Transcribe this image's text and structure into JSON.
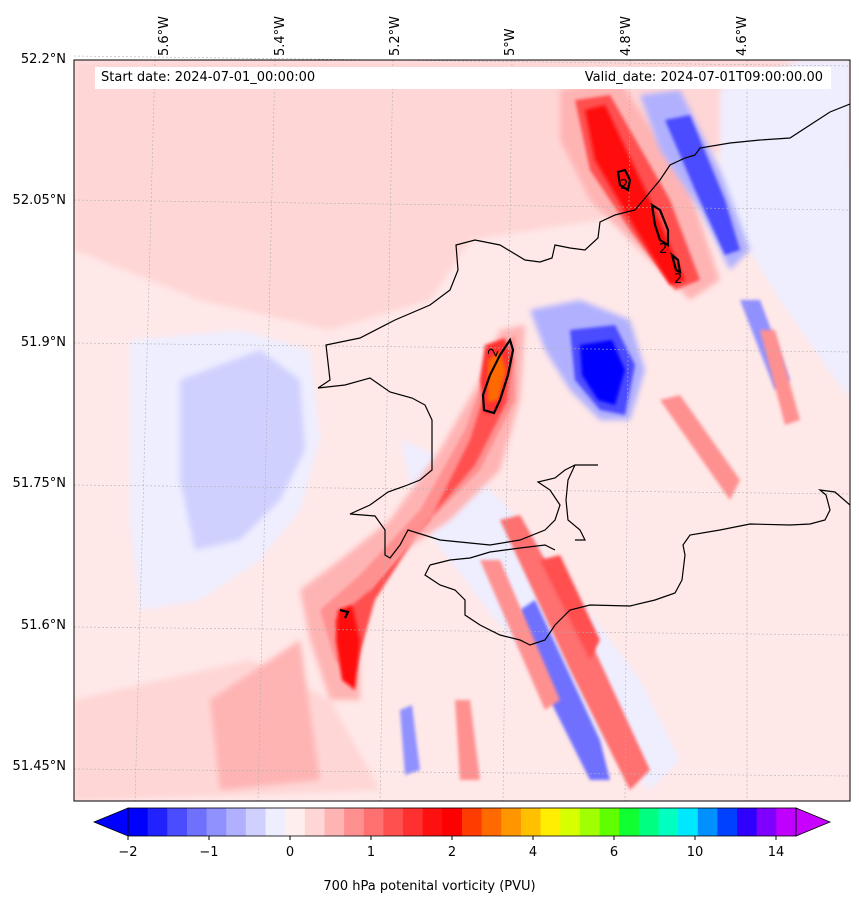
{
  "header": {
    "start_label": "Start date: 2024-07-01_00:00:00",
    "valid_label": "Valid_date: 2024-07-01T09:00:00.00"
  },
  "axes": {
    "lon_labels": [
      "5.6°W",
      "5.4°W",
      "5.2°W",
      "5°W",
      "4.8°W",
      "4.6°W"
    ],
    "lat_labels": [
      "52.2°N",
      "52.05°N",
      "51.9°N",
      "51.75°N",
      "51.6°N",
      "51.45°N"
    ]
  },
  "colorbar": {
    "label": "700 hPa potenital vorticity (PVU)",
    "ticks": [
      "−2",
      "−1",
      "0",
      "1",
      "2",
      "4",
      "6",
      "10",
      "14"
    ],
    "colors": [
      "#0000ff",
      "#2222ff",
      "#4c4cff",
      "#7070ff",
      "#9090ff",
      "#b0b0ff",
      "#d0d0ff",
      "#eeeeff",
      "#ffeeee",
      "#ffd6d6",
      "#ffb4b4",
      "#ff9090",
      "#ff7070",
      "#ff5050",
      "#ff3030",
      "#ff1010",
      "#ff0000",
      "#ff3c00",
      "#ff6a00",
      "#ff9600",
      "#ffc000",
      "#ffee00",
      "#d6ff00",
      "#a0ff00",
      "#60ff00",
      "#10ff30",
      "#00ff80",
      "#00ffc0",
      "#00e8ff",
      "#0090ff",
      "#0040ff",
      "#3000ff",
      "#8000ff",
      "#c000ff"
    ],
    "under_color": "#0000ff",
    "over_color": "#c800ff"
  },
  "contour_label": "2"
}
